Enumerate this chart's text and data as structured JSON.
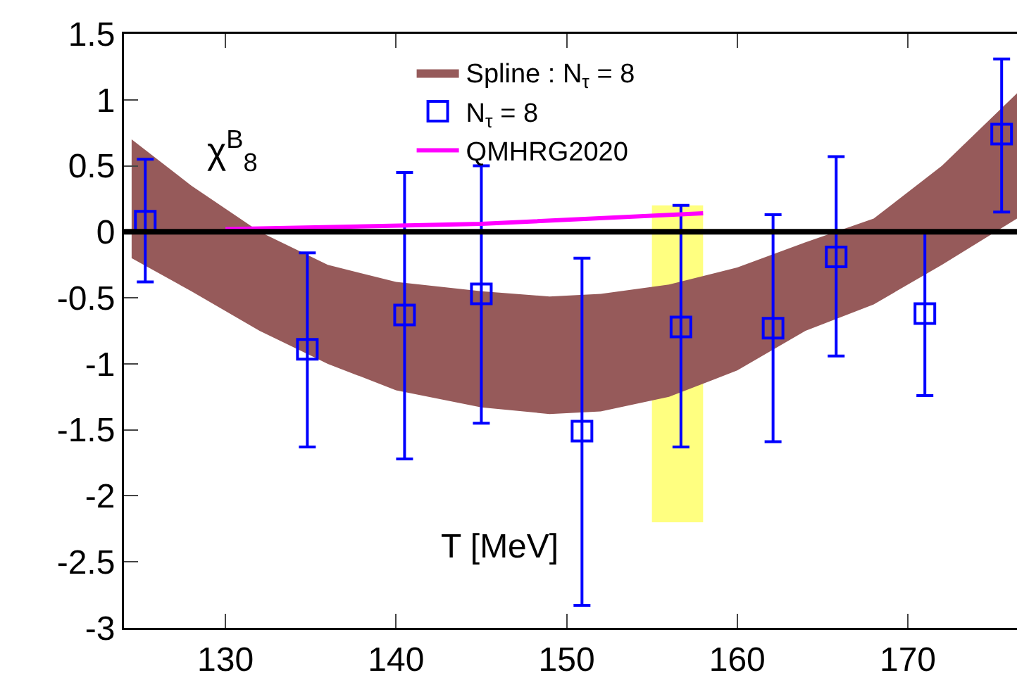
{
  "chart_data": {
    "type": "scatter",
    "xlabel": "T [MeV]",
    "annotations": [
      "χ$^{B}$$_{8}$"
    ],
    "series": [
      {
        "type": "area",
        "color": "#ffff80",
        "x": [
          155,
          158
        ],
        "values": [
          null,
          null
        ],
        "lower": [
          -2.2,
          -2.2
        ],
        "upper": [
          0.2,
          0.2
        ]
      },
      {
        "type": "area",
        "name": "Spline : N$_{τ}$ = 8",
        "color": "#965a5a",
        "x": [
          124.5,
          128,
          132,
          136,
          140,
          145,
          149,
          152,
          156,
          160,
          164,
          168,
          172,
          176.4
        ],
        "values": [
          null,
          null,
          null,
          null,
          null,
          null,
          null,
          null,
          null,
          null,
          null,
          null,
          null,
          null
        ],
        "lower": [
          -0.2,
          -0.45,
          -0.75,
          -1.0,
          -1.2,
          -1.33,
          -1.38,
          -1.36,
          -1.25,
          -1.05,
          -0.75,
          -0.55,
          -0.25,
          0.1
        ],
        "upper": [
          0.7,
          0.35,
          0.0,
          -0.25,
          -0.38,
          -0.45,
          -0.49,
          -0.47,
          -0.4,
          -0.27,
          -0.08,
          0.1,
          0.5,
          1.05
        ]
      },
      {
        "name": "N$_{τ}$ = 8",
        "color": "#0000ff",
        "marker": "square",
        "x": [
          125.3,
          134.8,
          140.5,
          145,
          150.9,
          156.7,
          162.1,
          165.8,
          171,
          175.5
        ],
        "values": [
          0.08,
          -0.89,
          -0.63,
          -0.47,
          -1.51,
          -0.72,
          -0.73,
          -0.19,
          -0.62,
          0.74
        ],
        "errors": [
          [
            -0.38,
            0.55
          ],
          [
            -1.63,
            -0.16
          ],
          [
            -1.72,
            0.45
          ],
          [
            -1.45,
            0.5
          ],
          [
            -2.83,
            -0.2
          ],
          [
            -1.63,
            0.2
          ],
          [
            -1.59,
            0.13
          ],
          [
            -0.94,
            0.57
          ],
          [
            -1.24,
            0.0
          ],
          [
            0.15,
            1.31
          ]
        ]
      },
      {
        "type": "line",
        "name": "QMHRG2020",
        "color": "#ff00ff",
        "x": [
          130,
          145,
          158
        ],
        "values": [
          0.02,
          0.06,
          0.14
        ]
      }
    ],
    "ref_lines": [
      {
        "axis": "y",
        "value": 0,
        "color": "#000000"
      }
    ],
    "xlim": [
      124.05,
      176.4
    ],
    "xticks": [
      130,
      140,
      150,
      160,
      170
    ],
    "ylim": [
      -3,
      1.5
    ],
    "yticks": [
      -3,
      -2.5,
      -2,
      -1.5,
      -1,
      -0.5,
      0,
      0.5,
      1,
      1.5
    ],
    "grid": false,
    "legend": "top"
  }
}
